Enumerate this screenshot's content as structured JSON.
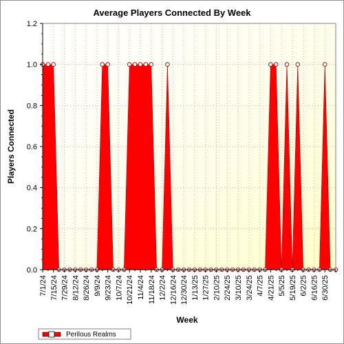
{
  "chart_data": {
    "type": "area",
    "title": "Average Players Connected By Week",
    "xlabel": "Week",
    "ylabel": "Players Connected",
    "ylim": [
      0,
      1.2
    ],
    "yticks": [
      "0.0",
      "0.2",
      "0.4",
      "0.6",
      "0.8",
      "1.0",
      "1.2"
    ],
    "xticks": [
      "7/1/24",
      "7/15/24",
      "7/29/24",
      "8/12/24",
      "8/26/24",
      "9/9/24",
      "9/23/24",
      "10/7/24",
      "10/21/24",
      "11/4/24",
      "11/18/24",
      "12/2/24",
      "12/16/24",
      "12/30/24",
      "1/13/25",
      "1/27/25",
      "2/10/25",
      "2/24/25",
      "3/10/25",
      "3/24/25",
      "4/7/25",
      "4/21/25",
      "5/5/25",
      "5/19/25",
      "6/2/25",
      "6/16/25",
      "6/30/25"
    ],
    "x_first": "7/1/24",
    "x_step": "1 week",
    "grid": true,
    "legend_position": "bottom-left",
    "series": [
      {
        "name": "Perilous Realms",
        "color": "#ff0000",
        "values": [
          1,
          1,
          1,
          0,
          0,
          0,
          0,
          0,
          0,
          0,
          0,
          1,
          1,
          0,
          0,
          0,
          1,
          1,
          1,
          1,
          1,
          0,
          0,
          1,
          0,
          0,
          0,
          0,
          0,
          0,
          0,
          0,
          0,
          0,
          0,
          0,
          0,
          0,
          0,
          0,
          0,
          0,
          1,
          1,
          0,
          1,
          0,
          1,
          0,
          0,
          0,
          0,
          1,
          0,
          0
        ]
      }
    ]
  }
}
